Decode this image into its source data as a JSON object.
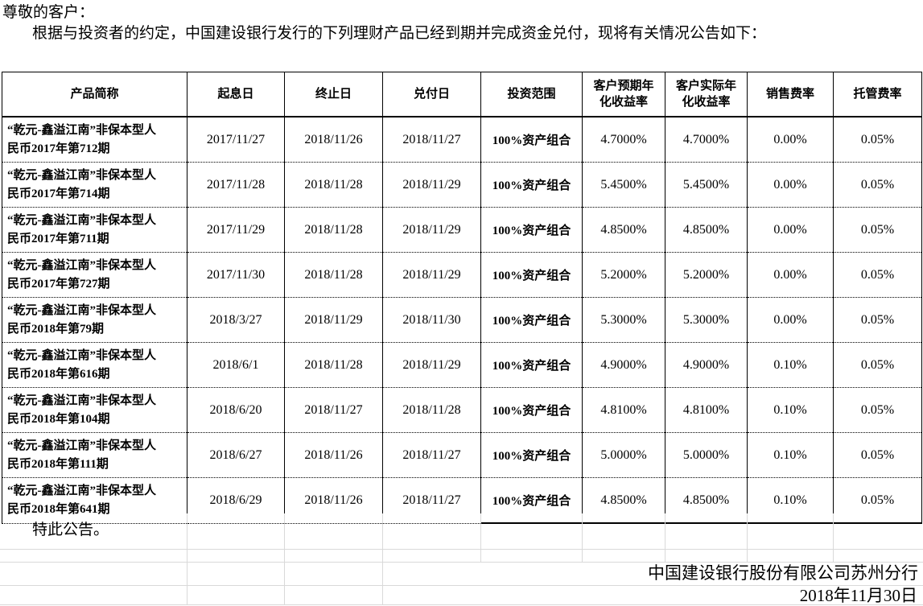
{
  "page": {
    "salutation": "尊敬的客户：",
    "intro": "根据与投资者的约定，中国建设银行发行的下列理财产品已经到期并完成资金兑付，现将有关情况公告如下：",
    "closing": "特此公告。",
    "issuer": "中国建设银行股份有限公司苏州分行",
    "date": "2018年11月30日"
  },
  "table": {
    "headers": [
      "产品简称",
      "起息日",
      "终止日",
      "兑付日",
      "投资范围",
      "客户预期年\n化收益率",
      "客户实际年\n化收益率",
      "销售费率",
      "托管费率"
    ],
    "rows": [
      [
        "“乾元-鑫溢江南”非保本型人\n民币2017年第712期",
        "2017/11/27",
        "2018/11/26",
        "2018/11/27",
        "100%资产组合",
        "4.7000%",
        "4.7000%",
        "0.00%",
        "0.05%"
      ],
      [
        "“乾元-鑫溢江南”非保本型人\n民币2017年第714期",
        "2017/11/28",
        "2018/11/28",
        "2018/11/29",
        "100%资产组合",
        "5.4500%",
        "5.4500%",
        "0.00%",
        "0.05%"
      ],
      [
        "“乾元-鑫溢江南”非保本型人\n民币2017年第711期",
        "2017/11/29",
        "2018/11/28",
        "2018/11/29",
        "100%资产组合",
        "4.8500%",
        "4.8500%",
        "0.00%",
        "0.05%"
      ],
      [
        "“乾元-鑫溢江南”非保本型人\n民币2017年第727期",
        "2017/11/30",
        "2018/11/28",
        "2018/11/29",
        "100%资产组合",
        "5.2000%",
        "5.2000%",
        "0.00%",
        "0.05%"
      ],
      [
        "“乾元-鑫溢江南”非保本型人\n民币2018年第79期",
        "2018/3/27",
        "2018/11/29",
        "2018/11/30",
        "100%资产组合",
        "5.3000%",
        "5.3000%",
        "0.00%",
        "0.05%"
      ],
      [
        "“乾元-鑫溢江南”非保本型人\n民币2018年第616期",
        "2018/6/1",
        "2018/11/28",
        "2018/11/29",
        "100%资产组合",
        "4.9000%",
        "4.9000%",
        "0.10%",
        "0.05%"
      ],
      [
        "“乾元-鑫溢江南”非保本型人\n民币2018年第104期",
        "2018/6/20",
        "2018/11/27",
        "2018/11/28",
        "100%资产组合",
        "4.8100%",
        "4.8100%",
        "0.10%",
        "0.05%"
      ],
      [
        "“乾元-鑫溢江南”非保本型人\n民币2018年第111期",
        "2018/6/27",
        "2018/11/26",
        "2018/11/27",
        "100%资产组合",
        "5.0000%",
        "5.0000%",
        "0.10%",
        "0.05%"
      ],
      [
        "“乾元-鑫溢江南”非保本型人\n民币2018年第641期",
        "2018/6/29",
        "2018/11/26",
        "2018/11/27",
        "100%资产组合",
        "4.8500%",
        "4.8500%",
        "0.10%",
        "0.05%"
      ]
    ]
  },
  "colors": {
    "border": "#000000",
    "gridline": "#d9d9d9",
    "text": "#000000",
    "background": "#ffffff"
  }
}
